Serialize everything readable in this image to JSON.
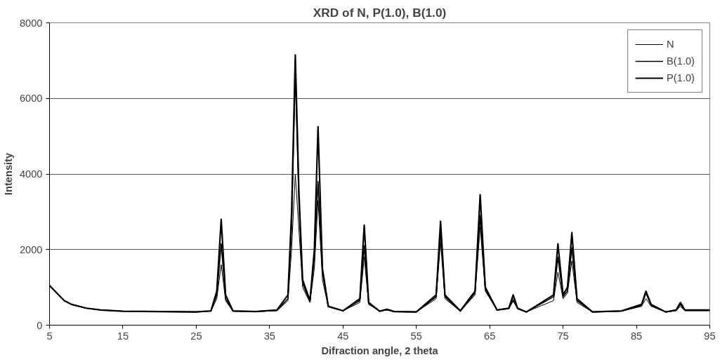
{
  "chart_data": {
    "type": "line",
    "title": "XRD of N, P(1.0), B(1.0)",
    "xlabel": "Difraction angle, 2 theta",
    "ylabel": "Intensity",
    "x": [
      5,
      6,
      7,
      8,
      10,
      12,
      15,
      20,
      25,
      27,
      27.8,
      28.4,
      29,
      30,
      33,
      36,
      37.5,
      38,
      38.5,
      39,
      39.5,
      40.5,
      41.1,
      41.6,
      42.2,
      43,
      45,
      47.3,
      47.9,
      48.5,
      50,
      51,
      52,
      55,
      57.7,
      58.3,
      58.9,
      61,
      63,
      63.7,
      64.4,
      66,
      67.6,
      68.2,
      68.8,
      70,
      73.7,
      74.3,
      75,
      75.6,
      76.2,
      76.9,
      79,
      83,
      85.7,
      86.3,
      87,
      89,
      90.4,
      91,
      91.6,
      95
    ],
    "series": [
      {
        "name": "N",
        "color": "#000000",
        "values": [
          1050,
          850,
          650,
          550,
          450,
          400,
          370,
          360,
          350,
          370,
          700,
          1600,
          650,
          370,
          360,
          380,
          650,
          2000,
          4000,
          2500,
          1000,
          600,
          1500,
          3300,
          1200,
          480,
          380,
          600,
          1800,
          550,
          370,
          400,
          360,
          350,
          700,
          2200,
          700,
          370,
          800,
          2600,
          900,
          400,
          430,
          700,
          430,
          350,
          650,
          1400,
          700,
          850,
          1700,
          600,
          350,
          370,
          500,
          700,
          500,
          350,
          380,
          500,
          380,
          380
        ]
      },
      {
        "name": "B(1.0)",
        "color": "#000000",
        "values": [
          1050,
          850,
          650,
          550,
          450,
          400,
          370,
          360,
          350,
          370,
          800,
          2150,
          700,
          370,
          360,
          390,
          700,
          2600,
          6700,
          3200,
          1100,
          620,
          1800,
          3800,
          1400,
          490,
          380,
          650,
          2100,
          580,
          370,
          410,
          360,
          350,
          750,
          2500,
          750,
          370,
          850,
          2900,
          950,
          400,
          440,
          650,
          440,
          350,
          750,
          1800,
          750,
          900,
          2050,
          650,
          350,
          370,
          520,
          850,
          520,
          350,
          390,
          550,
          390,
          390
        ]
      },
      {
        "name": "P(1.0)",
        "color": "#000000",
        "values": [
          1050,
          850,
          650,
          550,
          450,
          400,
          370,
          360,
          350,
          380,
          900,
          2800,
          800,
          380,
          360,
          400,
          800,
          3000,
          7150,
          3500,
          1200,
          650,
          2000,
          5250,
          1500,
          500,
          380,
          700,
          2650,
          600,
          370,
          420,
          360,
          350,
          800,
          2750,
          800,
          380,
          900,
          3450,
          1000,
          400,
          450,
          800,
          450,
          350,
          800,
          2150,
          800,
          1000,
          2450,
          700,
          350,
          380,
          550,
          900,
          550,
          350,
          400,
          600,
          400,
          400
        ]
      }
    ],
    "xlim": [
      5,
      95
    ],
    "xticks": [
      5,
      15,
      25,
      35,
      45,
      55,
      65,
      75,
      85,
      95
    ],
    "ylim": [
      0,
      8000
    ],
    "yticks": [
      0,
      2000,
      4000,
      6000,
      8000
    ],
    "grid": "y",
    "legend": "top right"
  }
}
